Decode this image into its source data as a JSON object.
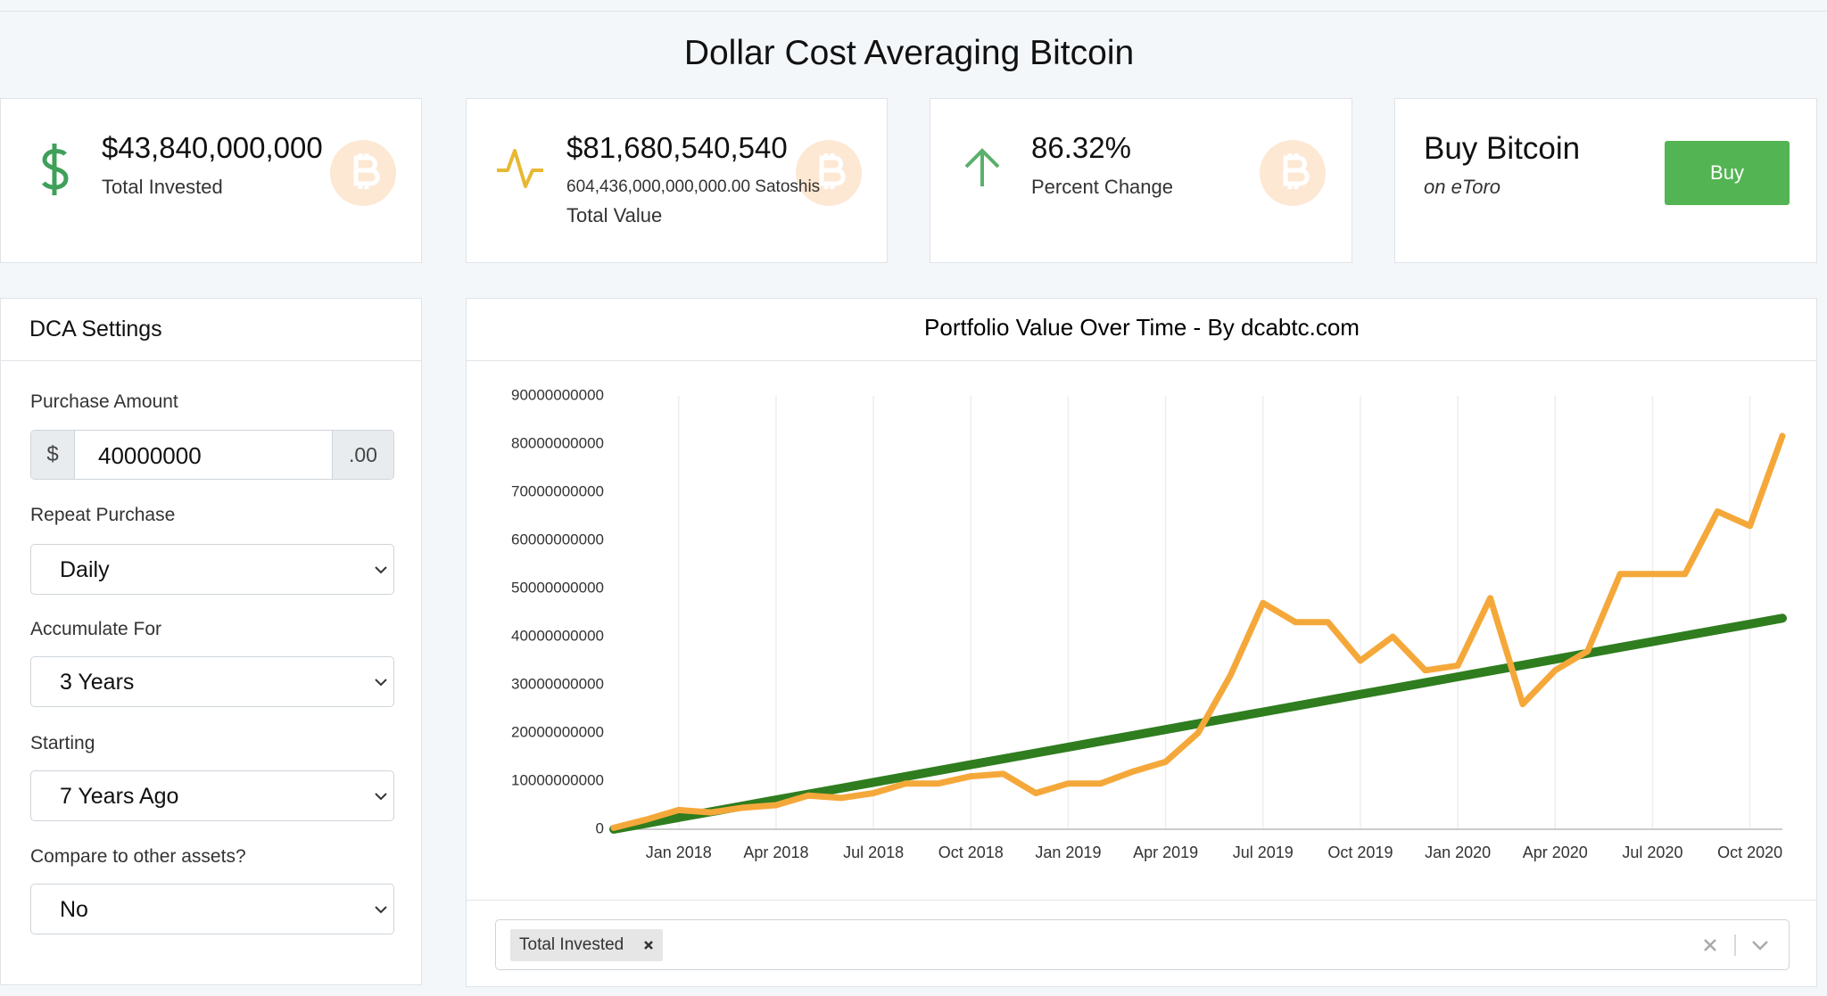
{
  "page": {
    "title": "Dollar Cost Averaging Bitcoin"
  },
  "stats": [
    {
      "value": "$43,840,000,000",
      "label": "Total Invested"
    },
    {
      "value": "$81,680,540,540",
      "sub": "604,436,000,000,000.00 Satoshis",
      "label": "Total Value"
    },
    {
      "value": "86.32%",
      "label": "Percent Change"
    }
  ],
  "buy": {
    "title": "Buy Bitcoin",
    "subtitle": "on eToro",
    "button": "Buy"
  },
  "settings": {
    "title": "DCA Settings",
    "amount": {
      "label": "Purchase Amount",
      "prefix": "$",
      "value": "40000000",
      "suffix": ".00"
    },
    "selects": [
      {
        "label": "Repeat Purchase",
        "value": "Daily"
      },
      {
        "label": "Accumulate For",
        "value": "3 Years"
      },
      {
        "label": "Starting",
        "value": "7 Years Ago"
      },
      {
        "label": "Compare to other assets?",
        "value": "No"
      }
    ]
  },
  "chart_data": {
    "type": "line",
    "title": "Portfolio Value Over Time - By dcabtc.com",
    "x": [
      "2017-11",
      "2017-12",
      "2018-01",
      "2018-02",
      "2018-03",
      "2018-04",
      "2018-05",
      "2018-06",
      "2018-07",
      "2018-08",
      "2018-09",
      "2018-10",
      "2018-11",
      "2018-12",
      "2019-01",
      "2019-02",
      "2019-03",
      "2019-04",
      "2019-05",
      "2019-06",
      "2019-07",
      "2019-08",
      "2019-09",
      "2019-10",
      "2019-11",
      "2019-12",
      "2020-01",
      "2020-02",
      "2020-03",
      "2020-04",
      "2020-05",
      "2020-06",
      "2020-07",
      "2020-08",
      "2020-09",
      "2020-10",
      "2020-11"
    ],
    "series": [
      {
        "name": "Total Invested",
        "color": "#2f7d1f",
        "values": [
          0,
          1220000000,
          2440000000,
          3650000000,
          4870000000,
          6090000000,
          7310000000,
          8520000000,
          9740000000,
          10960000000,
          12180000000,
          13400000000,
          14610000000,
          15830000000,
          17050000000,
          18270000000,
          19480000000,
          20700000000,
          21920000000,
          23140000000,
          24360000000,
          25570000000,
          26790000000,
          28010000000,
          29230000000,
          30450000000,
          31660000000,
          32880000000,
          34100000000,
          35320000000,
          36530000000,
          37750000000,
          38970000000,
          40190000000,
          41410000000,
          42620000000,
          43840000000
        ]
      },
      {
        "color": "#f5a83a",
        "values": [
          300000000,
          2000000000,
          4000000000,
          3500000000,
          4500000000,
          5000000000,
          7000000000,
          6500000000,
          7500000000,
          9500000000,
          9500000000,
          11000000000,
          11500000000,
          7500000000,
          9500000000,
          9500000000,
          12000000000,
          14000000000,
          20000000000,
          32000000000,
          47000000000,
          43000000000,
          43000000000,
          35000000000,
          40000000000,
          33000000000,
          34000000000,
          48000000000,
          26000000000,
          33000000000,
          37000000000,
          53000000000,
          53000000000,
          53000000000,
          66000000000,
          63000000000,
          81680540540
        ]
      }
    ],
    "xlim": [
      "2017-11",
      "2020-11"
    ],
    "xticks": [
      {
        "value": "2018-01",
        "label": "Jan 2018"
      },
      {
        "value": "2018-04",
        "label": "Apr 2018"
      },
      {
        "value": "2018-07",
        "label": "Jul 2018"
      },
      {
        "value": "2018-10",
        "label": "Oct 2018"
      },
      {
        "value": "2019-01",
        "label": "Jan 2019"
      },
      {
        "value": "2019-04",
        "label": "Apr 2019"
      },
      {
        "value": "2019-07",
        "label": "Jul 2019"
      },
      {
        "value": "2019-10",
        "label": "Oct 2019"
      },
      {
        "value": "2020-01",
        "label": "Jan 2020"
      },
      {
        "value": "2020-04",
        "label": "Apr 2020"
      },
      {
        "value": "2020-07",
        "label": "Jul 2020"
      },
      {
        "value": "2020-10",
        "label": "Oct 2020"
      }
    ],
    "ylim": [
      0,
      90000000000
    ],
    "yticks": [
      0,
      10000000000,
      20000000000,
      30000000000,
      40000000000,
      50000000000,
      60000000000,
      70000000000,
      80000000000,
      90000000000
    ],
    "grid": "x"
  }
}
